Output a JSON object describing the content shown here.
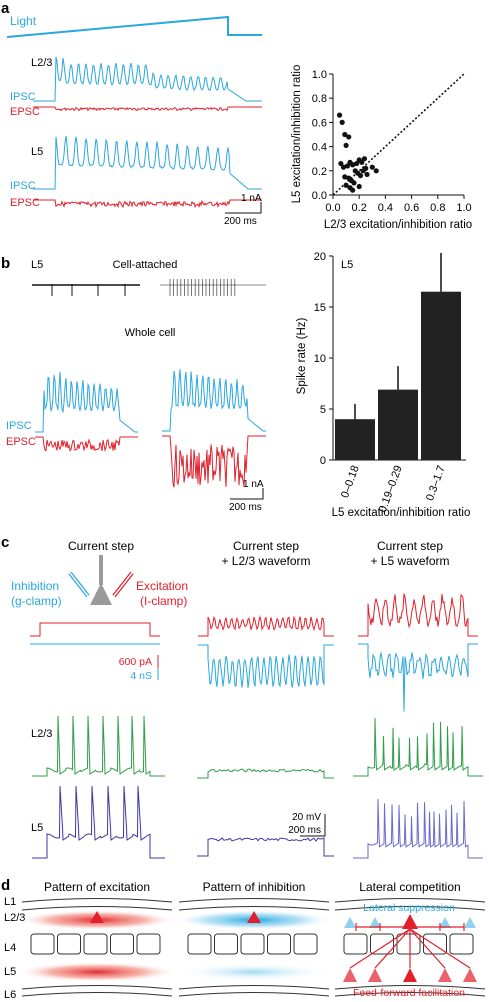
{
  "colors": {
    "ipsc": "#2aa7df",
    "epsc": "#e2202b",
    "green": "#2f9e4a",
    "blue": "#3a3aa8",
    "bar": "#222222"
  },
  "panel_a": {
    "label": "a",
    "light": "Light",
    "l23": "L2/3",
    "l5": "L5",
    "ipsc": "IPSC",
    "epsc": "EPSC",
    "scale_na": "1 nA",
    "scale_ms": "200 ms"
  },
  "scatter": {
    "xlabel": "L2/3 excitation/inhibition ratio",
    "ylabel": "L5 excitation/inhibition ratio",
    "ticks": [
      "0.0",
      "0.2",
      "0.4",
      "0.6",
      "0.8",
      "1.0"
    ]
  },
  "panel_b": {
    "label": "b",
    "l5": "L5",
    "cell_attached": "Cell-attached",
    "whole_cell": "Whole cell",
    "ipsc": "IPSC",
    "epsc": "EPSC",
    "scale_na": "1 nA",
    "scale_ms": "200 ms"
  },
  "bar": {
    "inset": "L5",
    "ylabel": "Spike rate (Hz)",
    "xlabel": "L5 excitation/inhibition ratio",
    "yticks": [
      "0",
      "5",
      "10",
      "15",
      "20"
    ]
  },
  "panel_c": {
    "label": "c",
    "col1": "Current step",
    "col2_l1": "Current step",
    "col2_l2": "+ L2/3 waveform",
    "col3_l1": "Current step",
    "col3_l2": "+ L5 waveform",
    "inh_l1": "Inhibition",
    "inh_l2": "(g-clamp)",
    "exc_l1": "Excitation",
    "exc_l2": "(I-clamp)",
    "scale_pa": "600 pA",
    "scale_ns": "4 nS",
    "l23": "L2/3",
    "l5": "L5",
    "scale_mv": "20 mV",
    "scale_ms": "200 ms"
  },
  "panel_d": {
    "label": "d",
    "title1": "Pattern of excitation",
    "title2": "Pattern of inhibition",
    "title3": "Lateral competition",
    "layers": [
      "L1",
      "L2/3",
      "L4",
      "L5",
      "L6"
    ],
    "lateral": "Lateral suppression",
    "feedforward": "Feed-forward facilitation"
  },
  "chart_data": [
    {
      "type": "scatter",
      "title": "",
      "xlabel": "L2/3 excitation/inhibition ratio",
      "ylabel": "L5 excitation/inhibition ratio",
      "xlim": [
        0,
        1.0
      ],
      "ylim": [
        0,
        1.0
      ],
      "unity_line": true,
      "points": [
        [
          0.05,
          0.66
        ],
        [
          0.07,
          0.6
        ],
        [
          0.09,
          0.5
        ],
        [
          0.12,
          0.48
        ],
        [
          0.1,
          0.41
        ],
        [
          0.06,
          0.26
        ],
        [
          0.08,
          0.23
        ],
        [
          0.11,
          0.24
        ],
        [
          0.13,
          0.27
        ],
        [
          0.15,
          0.25
        ],
        [
          0.18,
          0.26
        ],
        [
          0.2,
          0.29
        ],
        [
          0.22,
          0.27
        ],
        [
          0.24,
          0.3
        ],
        [
          0.17,
          0.2
        ],
        [
          0.19,
          0.18
        ],
        [
          0.21,
          0.16
        ],
        [
          0.23,
          0.2
        ],
        [
          0.25,
          0.22
        ],
        [
          0.12,
          0.14
        ],
        [
          0.14,
          0.12
        ],
        [
          0.16,
          0.1
        ],
        [
          0.1,
          0.08
        ],
        [
          0.13,
          0.06
        ],
        [
          0.2,
          0.07
        ],
        [
          0.09,
          0.15
        ],
        [
          0.3,
          0.23
        ],
        [
          0.33,
          0.2
        ],
        [
          0.15,
          0.04
        ],
        [
          0.26,
          0.17
        ]
      ]
    },
    {
      "type": "bar",
      "title": "",
      "categories": [
        "0–0.18",
        "0.19–0.29",
        "0.3–1.7"
      ],
      "values": [
        4.0,
        6.9,
        16.5
      ],
      "errors": [
        1.5,
        2.3,
        3.8
      ],
      "ylabel": "Spike rate (Hz)",
      "xlabel": "L5 excitation/inhibition ratio",
      "ylim": [
        0,
        20
      ]
    }
  ]
}
